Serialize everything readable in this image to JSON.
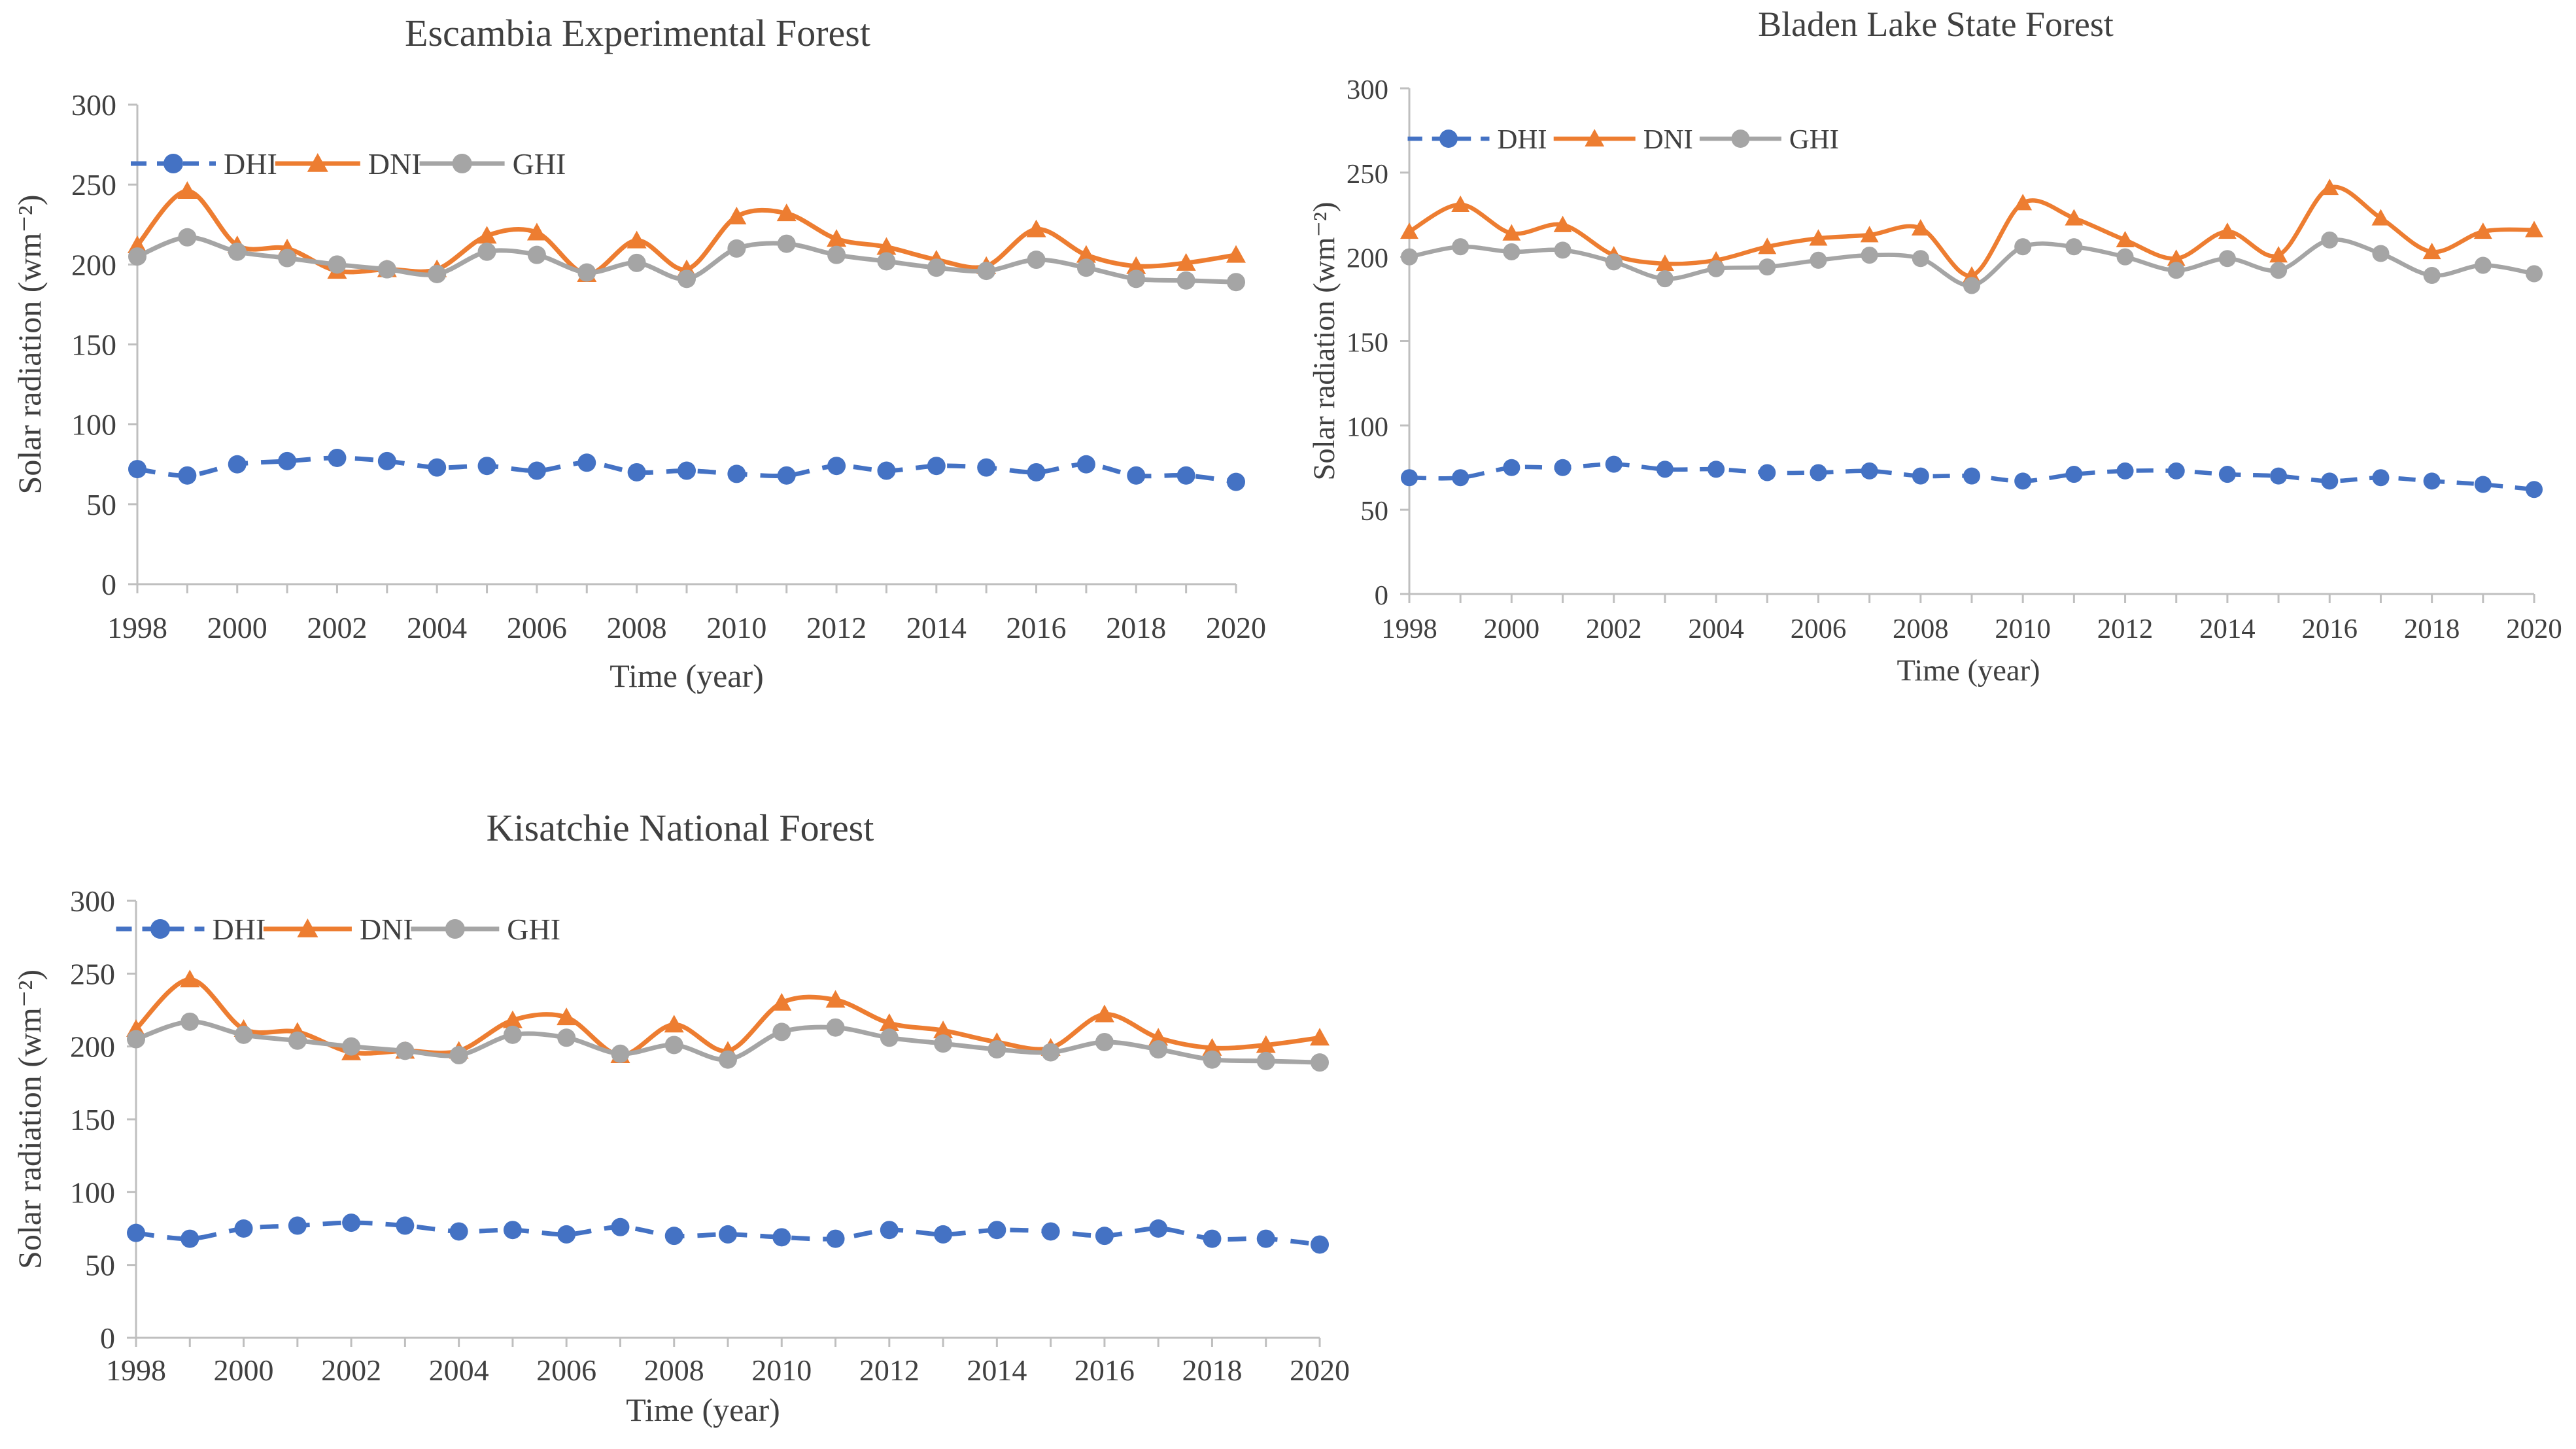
{
  "colors": {
    "DHI": "#4472C4",
    "DNI": "#ED7D31",
    "GHI": "#A5A5A5",
    "axis": "#BFBFBF",
    "text": "#404040"
  },
  "chart_data": [
    {
      "type": "line",
      "title": "Escambia Experimental Forest",
      "xlabel": "Time (year)",
      "ylabel": "Solar radiation (wm⁻²)",
      "ylim": [
        0,
        300
      ],
      "yticks": [
        0,
        50,
        100,
        150,
        200,
        250,
        300
      ],
      "xticks": [
        1998,
        2000,
        2002,
        2004,
        2006,
        2008,
        2010,
        2012,
        2014,
        2016,
        2018,
        2020
      ],
      "legend": "top-left",
      "x": [
        1998,
        1999,
        2000,
        2001,
        2002,
        2003,
        2004,
        2005,
        2006,
        2007,
        2008,
        2009,
        2010,
        2011,
        2012,
        2013,
        2014,
        2015,
        2016,
        2017,
        2018,
        2019,
        2020
      ],
      "series": [
        {
          "name": "DHI",
          "values": [
            72,
            68,
            75,
            77,
            79,
            77,
            73,
            74,
            71,
            76,
            70,
            71,
            69,
            68,
            74,
            71,
            74,
            73,
            70,
            75,
            68,
            68,
            64
          ]
        },
        {
          "name": "DNI",
          "values": [
            212,
            246,
            212,
            210,
            196,
            197,
            197,
            218,
            220,
            194,
            215,
            197,
            230,
            232,
            216,
            211,
            203,
            199,
            222,
            206,
            199,
            201,
            206
          ]
        },
        {
          "name": "GHI",
          "values": [
            205,
            217,
            208,
            204,
            200,
            197,
            194,
            208,
            206,
            195,
            201,
            191,
            210,
            213,
            206,
            202,
            198,
            196,
            203,
            198,
            191,
            190,
            189
          ]
        }
      ]
    },
    {
      "type": "line",
      "title": "Bladen Lake State Forest",
      "xlabel": "Time (year)",
      "ylabel": "Solar radiation (wm⁻²)",
      "ylim": [
        0,
        300
      ],
      "yticks": [
        0,
        50,
        100,
        150,
        200,
        250,
        300
      ],
      "xticks": [
        1998,
        2000,
        2002,
        2004,
        2006,
        2008,
        2010,
        2012,
        2014,
        2016,
        2018,
        2020
      ],
      "legend": "top-left",
      "x": [
        1998,
        1999,
        2000,
        2001,
        2002,
        2003,
        2004,
        2005,
        2006,
        2007,
        2008,
        2009,
        2010,
        2011,
        2012,
        2013,
        2014,
        2015,
        2016,
        2017,
        2018,
        2019,
        2020
      ],
      "series": [
        {
          "name": "DHI",
          "values": [
            69,
            69,
            75,
            75,
            77,
            74,
            74,
            72,
            72,
            73,
            70,
            70,
            67,
            71,
            73,
            73,
            71,
            70,
            67,
            69,
            67,
            65,
            62
          ]
        },
        {
          "name": "DNI",
          "values": [
            215,
            231,
            214,
            219,
            201,
            196,
            198,
            206,
            211,
            213,
            217,
            189,
            232,
            223,
            210,
            199,
            215,
            201,
            241,
            223,
            203,
            215,
            216
          ]
        },
        {
          "name": "GHI",
          "values": [
            200,
            206,
            203,
            204,
            197,
            187,
            193,
            194,
            198,
            201,
            199,
            183,
            206,
            206,
            200,
            192,
            199,
            192,
            210,
            202,
            189,
            195,
            190
          ]
        }
      ]
    },
    {
      "type": "line",
      "title": "Kisatchie National Forest",
      "xlabel": "Time (year)",
      "ylabel": "Solar radiation (wm⁻²)",
      "ylim": [
        0,
        300
      ],
      "yticks": [
        0,
        50,
        100,
        150,
        200,
        250,
        300
      ],
      "xticks": [
        1998,
        2000,
        2002,
        2004,
        2006,
        2008,
        2010,
        2012,
        2014,
        2016,
        2018,
        2020
      ],
      "legend": "top-left",
      "x": [
        1998,
        1999,
        2000,
        2001,
        2002,
        2003,
        2004,
        2005,
        2006,
        2007,
        2008,
        2009,
        2010,
        2011,
        2012,
        2013,
        2014,
        2015,
        2016,
        2017,
        2018,
        2019,
        2020
      ],
      "series": [
        {
          "name": "DHI",
          "values": [
            72,
            68,
            75,
            77,
            79,
            77,
            73,
            74,
            71,
            76,
            70,
            71,
            69,
            68,
            74,
            71,
            74,
            73,
            70,
            75,
            68,
            68,
            64
          ]
        },
        {
          "name": "DNI",
          "values": [
            212,
            246,
            212,
            210,
            196,
            197,
            197,
            218,
            220,
            194,
            215,
            197,
            230,
            232,
            216,
            211,
            203,
            199,
            222,
            206,
            199,
            201,
            206
          ]
        },
        {
          "name": "GHI",
          "values": [
            205,
            217,
            208,
            204,
            200,
            197,
            194,
            208,
            206,
            195,
            201,
            191,
            210,
            213,
            206,
            202,
            198,
            196,
            203,
            198,
            191,
            190,
            189
          ]
        }
      ]
    }
  ]
}
